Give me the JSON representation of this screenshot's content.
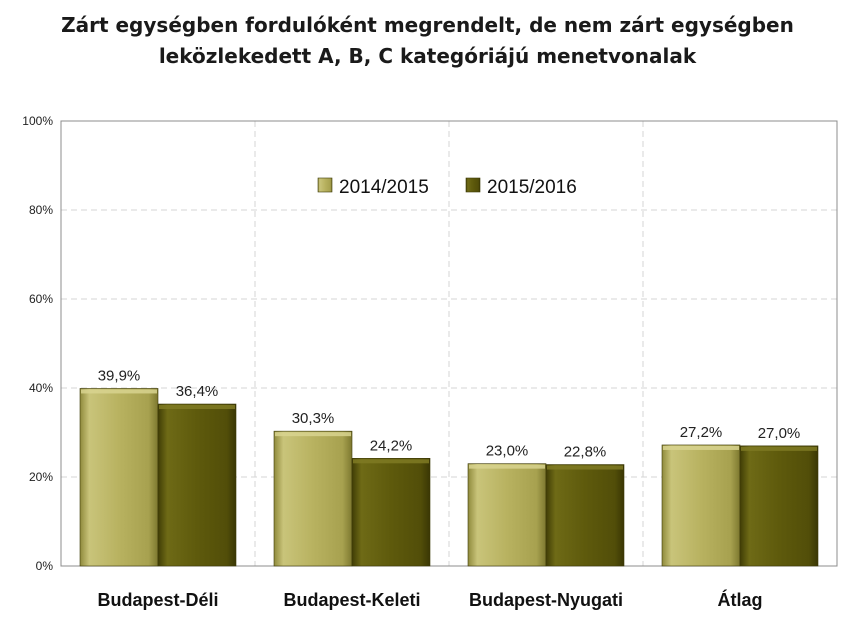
{
  "title_lines": [
    "Zárt egységben fordulóként megrendelt, de nem zárt egységben",
    "leközlekedett A, B, C kategóriájú menetvonalak"
  ],
  "colors": {
    "series_1": "#b8b260",
    "series_2": "#5e5a0c",
    "grid": "#d6d6d6",
    "axis": "#8c8c8c"
  },
  "chart_data": {
    "type": "bar",
    "categories": [
      "Budapest-Déli",
      "Budapest-Keleti",
      "Budapest-Nyugati",
      "Átlag"
    ],
    "series": [
      {
        "name": "2014/2015",
        "values": [
          39.9,
          30.3,
          23.0,
          27.2
        ],
        "labels": [
          "39,9%",
          "30,3%",
          "23,0%",
          "27,2%"
        ]
      },
      {
        "name": "2015/2016",
        "values": [
          36.4,
          24.2,
          22.8,
          27.0
        ],
        "labels": [
          "36,4%",
          "24,2%",
          "22,8%",
          "27,0%"
        ]
      }
    ],
    "ylim": [
      0,
      100
    ],
    "yticks": [
      0,
      20,
      40,
      60,
      80,
      100
    ],
    "ytick_labels": [
      "0%",
      "20%",
      "40%",
      "60%",
      "80%",
      "100%"
    ],
    "grid": true,
    "legend_position": "top-center"
  }
}
